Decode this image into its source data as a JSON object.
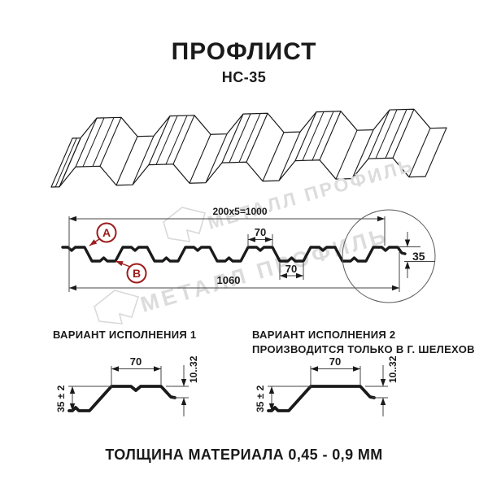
{
  "header": {
    "title": "ПРОФЛИСТ",
    "subtitle": "НС-35"
  },
  "watermark": {
    "text": "МЕТАЛЛ ПРОФИЛЬ"
  },
  "section_drawing": {
    "labels": {
      "a": "A",
      "b": "B"
    },
    "dims": {
      "top_total": "200x5=1000",
      "rib_top_width": "70",
      "rib_bottom_width": "70",
      "bottom_total": "1060",
      "height": "35"
    }
  },
  "variants": [
    {
      "title": "ВАРИАНТ ИСПОЛНЕНИЯ 1",
      "note": "",
      "dims": {
        "top_width": "70",
        "edge_height": "10..32",
        "height": "35 ± 2"
      }
    },
    {
      "title": "ВАРИАНТ ИСПОЛНЕНИЯ 2",
      "note": "ПРОИЗВОДИТСЯ ТОЛЬКО В Г. ШЕЛЕХОВ",
      "dims": {
        "top_width": "70",
        "edge_height": "10..32",
        "height": "35 ± 2"
      }
    }
  ],
  "footer": {
    "material_thickness": "ТОЛЩИНА МАТЕРИАЛА 0,45 - 0,9 ММ"
  },
  "colors": {
    "line": "#1a1a1a",
    "dim_line": "#444444",
    "accent_red": "#9e1c1c",
    "watermark": "#dcdcdc",
    "background": "#ffffff"
  }
}
